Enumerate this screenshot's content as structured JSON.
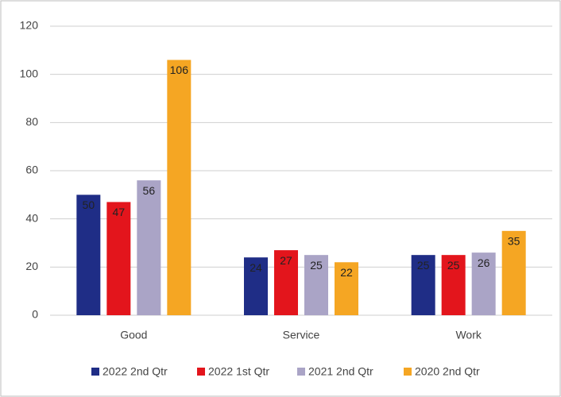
{
  "chart_data": {
    "type": "bar",
    "categories": [
      "Good",
      "Service",
      "Work"
    ],
    "series": [
      {
        "name": "2022 2nd Qtr",
        "color": "#1f2d86",
        "values": [
          50,
          24,
          25
        ]
      },
      {
        "name": "2022 1st Qtr",
        "color": "#e3151c",
        "values": [
          47,
          27,
          25
        ]
      },
      {
        "name": "2021 2nd Qtr",
        "color": "#aaa4c6",
        "values": [
          56,
          25,
          26
        ]
      },
      {
        "name": "2020 2nd Qtr",
        "color": "#f5a623",
        "values": [
          106,
          22,
          35
        ]
      }
    ],
    "ylim": [
      0,
      120
    ],
    "yticks": [
      0,
      20,
      40,
      60,
      80,
      100,
      120
    ],
    "grid": true,
    "legend": "bottom"
  }
}
